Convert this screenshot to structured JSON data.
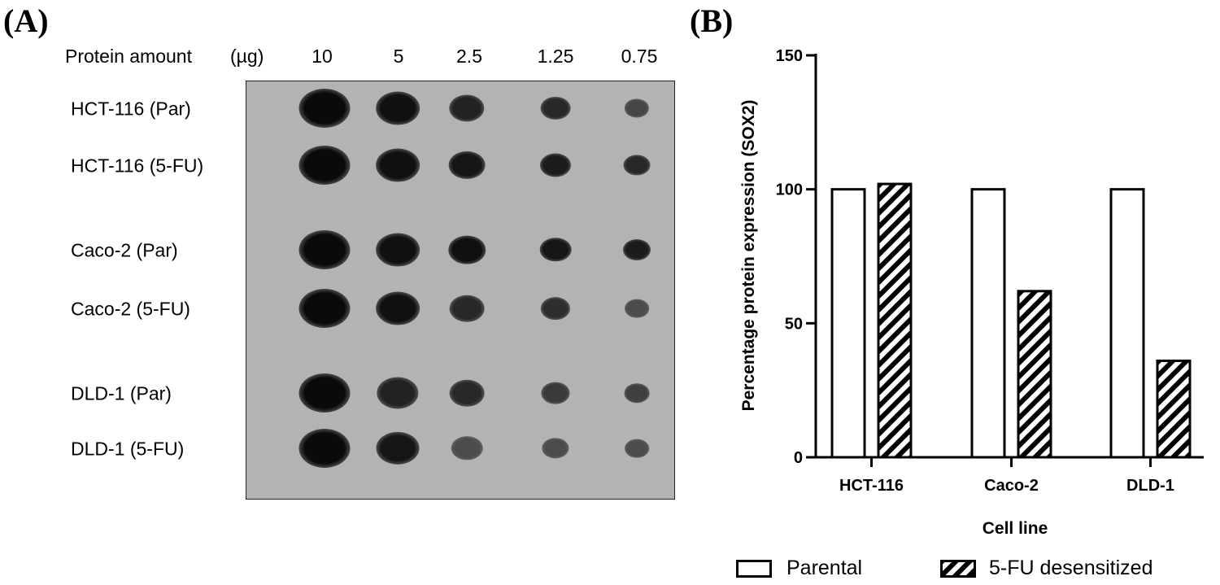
{
  "panel_a": {
    "letter": "(A)",
    "header_label": "Protein amount",
    "unit": "(µg)",
    "amounts": [
      "10",
      "5",
      "2.5",
      "1.25",
      "0.75"
    ],
    "rows": [
      "HCT-116 (Par)",
      "HCT-116 (5-FU)",
      "Caco-2 (Par)",
      "Caco-2 (5-FU)",
      "DLD-1 (Par)",
      "DLD-1 (5-FU)"
    ],
    "dot_intensity": [
      [
        1.0,
        0.95,
        0.8,
        0.75,
        0.5
      ],
      [
        1.0,
        0.95,
        0.9,
        0.85,
        0.75
      ],
      [
        1.0,
        0.95,
        0.95,
        0.9,
        0.85
      ],
      [
        1.0,
        0.95,
        0.75,
        0.7,
        0.45
      ],
      [
        1.0,
        0.8,
        0.75,
        0.6,
        0.55
      ],
      [
        1.0,
        0.9,
        0.45,
        0.45,
        0.45
      ]
    ],
    "colors": {
      "membrane": "#b3b3b3",
      "dot": "#0a0a0a"
    }
  },
  "panel_b": {
    "letter": "(B)"
  },
  "chart_data": {
    "type": "bar",
    "categories": [
      "HCT-116",
      "Caco-2",
      "DLD-1"
    ],
    "series": [
      {
        "name": "Parental",
        "values": [
          100,
          100,
          100
        ],
        "fill": "#ffffff"
      },
      {
        "name": "5-FU desensitized",
        "values": [
          102,
          62,
          36
        ],
        "fill": "hatched"
      }
    ],
    "xlabel": "Cell line",
    "ylabel": "Percentage protein expression (SOX2)",
    "ylim": [
      0,
      150
    ],
    "yticks": [
      "0",
      "50",
      "100",
      "150"
    ],
    "legend_position": "bottom",
    "grid": false
  }
}
